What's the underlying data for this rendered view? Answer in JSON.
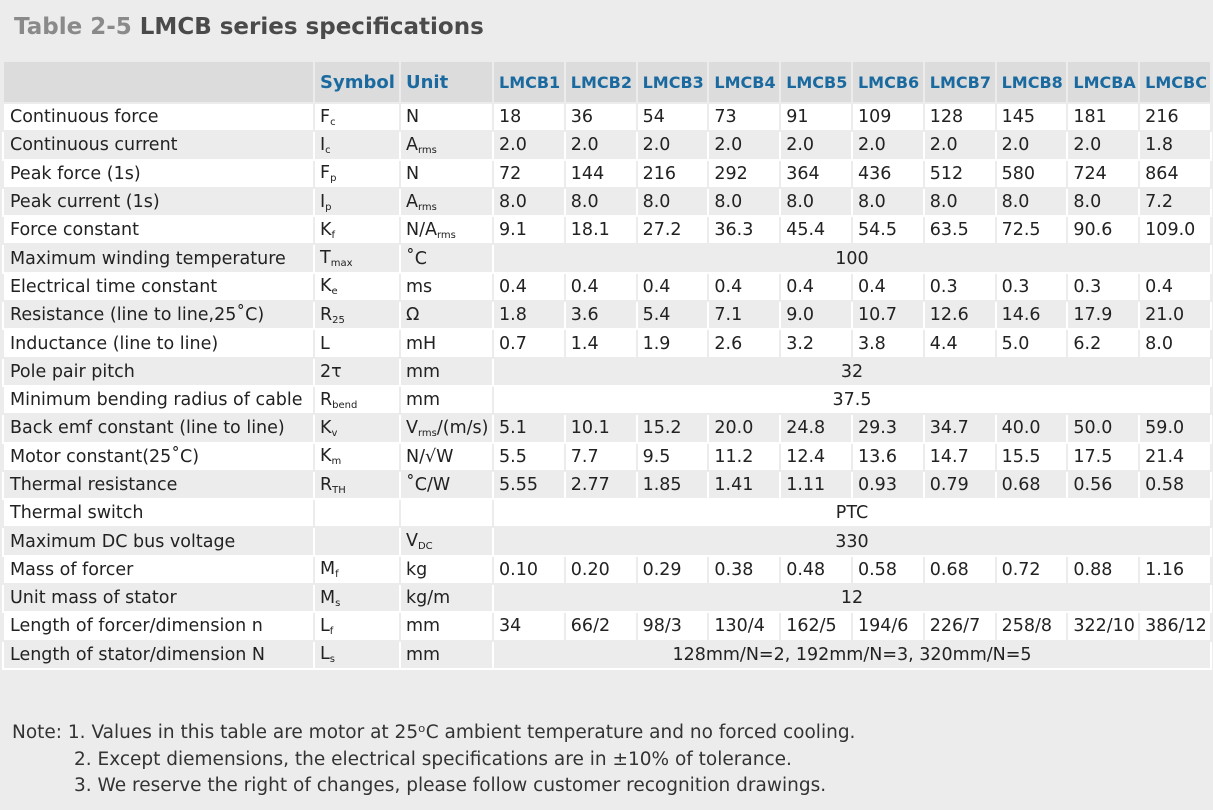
{
  "title": {
    "prefix": "Table 2-5",
    "main": "LMCB series specifications"
  },
  "headers": {
    "symbol": "Symbol",
    "unit": "Unit",
    "models": [
      "LMCB1",
      "LMCB2",
      "LMCB3",
      "LMCB4",
      "LMCB5",
      "LMCB6",
      "LMCB7",
      "LMCB8",
      "LMCBA",
      "LMCBC"
    ]
  },
  "rows": [
    {
      "param": "Continuous force",
      "sym": "F",
      "symSub": "c",
      "unit": "N",
      "unitSub": "",
      "values": [
        "18",
        "36",
        "54",
        "73",
        "91",
        "109",
        "128",
        "145",
        "181",
        "216"
      ]
    },
    {
      "param": "Continuous current",
      "sym": "I",
      "symSub": "c",
      "unit": "A",
      "unitSub": "rms",
      "values": [
        "2.0",
        "2.0",
        "2.0",
        "2.0",
        "2.0",
        "2.0",
        "2.0",
        "2.0",
        "2.0",
        "1.8"
      ]
    },
    {
      "param": "Peak force (1s)",
      "sym": "F",
      "symSub": "p",
      "unit": "N",
      "unitSub": "",
      "values": [
        "72",
        "144",
        "216",
        "292",
        "364",
        "436",
        "512",
        "580",
        "724",
        "864"
      ]
    },
    {
      "param": "Peak current (1s)",
      "sym": "I",
      "symSub": "p",
      "unit": "A",
      "unitSub": "rms",
      "values": [
        "8.0",
        "8.0",
        "8.0",
        "8.0",
        "8.0",
        "8.0",
        "8.0",
        "8.0",
        "8.0",
        "7.2"
      ]
    },
    {
      "param": "Force constant",
      "sym": "K",
      "symSub": "f",
      "unit": "N/A",
      "unitSub": "rms",
      "values": [
        "9.1",
        "18.1",
        "27.2",
        "36.3",
        "45.4",
        "54.5",
        "63.5",
        "72.5",
        "90.6",
        "109.0"
      ]
    },
    {
      "param": "Maximum winding temperature",
      "sym": "T",
      "symSub": "max",
      "unit": "˚C",
      "unitSub": "",
      "span": "100"
    },
    {
      "param": "Electrical time constant",
      "sym": "K",
      "symSub": "e",
      "unit": "ms",
      "unitSub": "",
      "values": [
        "0.4",
        "0.4",
        "0.4",
        "0.4",
        "0.4",
        "0.4",
        "0.3",
        "0.3",
        "0.3",
        "0.4"
      ]
    },
    {
      "param": "Resistance (line to line,25˚C)",
      "sym": "R",
      "symSub": "25",
      "unit": "Ω",
      "unitSub": "",
      "values": [
        "1.8",
        "3.6",
        "5.4",
        "7.1",
        "9.0",
        "10.7",
        "12.6",
        "14.6",
        "17.9",
        "21.0"
      ]
    },
    {
      "param": "Inductance (line to line)",
      "sym": "L",
      "symSub": "",
      "unit": "mH",
      "unitSub": "",
      "values": [
        "0.7",
        "1.4",
        "1.9",
        "2.6",
        "3.2",
        "3.8",
        "4.4",
        "5.0",
        "6.2",
        "8.0"
      ]
    },
    {
      "param": "Pole pair pitch",
      "sym": "2τ",
      "symSub": "",
      "unit": "mm",
      "unitSub": "",
      "span": "32"
    },
    {
      "param": "Minimum bending radius of  cable",
      "sym": "R",
      "symSub": "bend",
      "unit": "mm",
      "unitSub": "",
      "span": "37.5"
    },
    {
      "param": "Back emf constant (line to line)",
      "sym": "K",
      "symSub": "v",
      "unit": "V",
      "unitSub": "rms",
      "unitTail": "/(m/s)",
      "values": [
        "5.1",
        "10.1",
        "15.2",
        "20.0",
        "24.8",
        "29.3",
        "34.7",
        "40.0",
        "50.0",
        "59.0"
      ]
    },
    {
      "param": "Motor constant(25˚C)",
      "sym": "K",
      "symSub": "m",
      "unit": "N/√W",
      "unitSub": "",
      "values": [
        "5.5",
        "7.7",
        "9.5",
        "11.2",
        "12.4",
        "13.6",
        "14.7",
        "15.5",
        "17.5",
        "21.4"
      ]
    },
    {
      "param": "Thermal resistance",
      "sym": "R",
      "symSub": "TH",
      "unit": "˚C/W",
      "unitSub": "",
      "values": [
        "5.55",
        "2.77",
        "1.85",
        "1.41",
        "1.11",
        "0.93",
        "0.79",
        "0.68",
        "0.56",
        "0.58"
      ]
    },
    {
      "param": "Thermal switch",
      "sym": "",
      "symSub": "",
      "unit": "",
      "unitSub": "",
      "span": "PTC"
    },
    {
      "param": "Maximum DC bus voltage",
      "sym": "",
      "symSub": "",
      "unit": "V",
      "unitSub": "DC",
      "span": "330"
    },
    {
      "param": "Mass of forcer",
      "sym": "M",
      "symSub": "f",
      "unit": "kg",
      "unitSub": "",
      "values": [
        "0.10",
        "0.20",
        "0.29",
        "0.38",
        "0.48",
        "0.58",
        "0.68",
        "0.72",
        "0.88",
        "1.16"
      ]
    },
    {
      "param": "Unit mass of stator",
      "sym": "M",
      "symSub": "s",
      "unit": "kg/m",
      "unitSub": "",
      "span": "12"
    },
    {
      "param": "Length of forcer/dimension n",
      "sym": "L",
      "symSub": "f",
      "unit": "mm",
      "unitSub": "",
      "values": [
        "34",
        "66/2",
        "98/3",
        "130/4",
        "162/5",
        "194/6",
        "226/7",
        "258/8",
        "322/10",
        "386/12"
      ]
    },
    {
      "param": "Length of stator/dimension N",
      "sym": "L",
      "symSub": "s",
      "unit": "mm",
      "unitSub": "",
      "span": "128mm/N=2, 192mm/N=3, 320mm/N=5"
    }
  ],
  "notes": [
    "Note: 1. Values in this table are motor at 25ᵒC ambient temperature and no forced cooling.",
    "2. Except diemensions, the electrical specifications are in ±10% of tolerance.",
    "3. We reserve the right of changes, please follow customer recognition drawings."
  ]
}
